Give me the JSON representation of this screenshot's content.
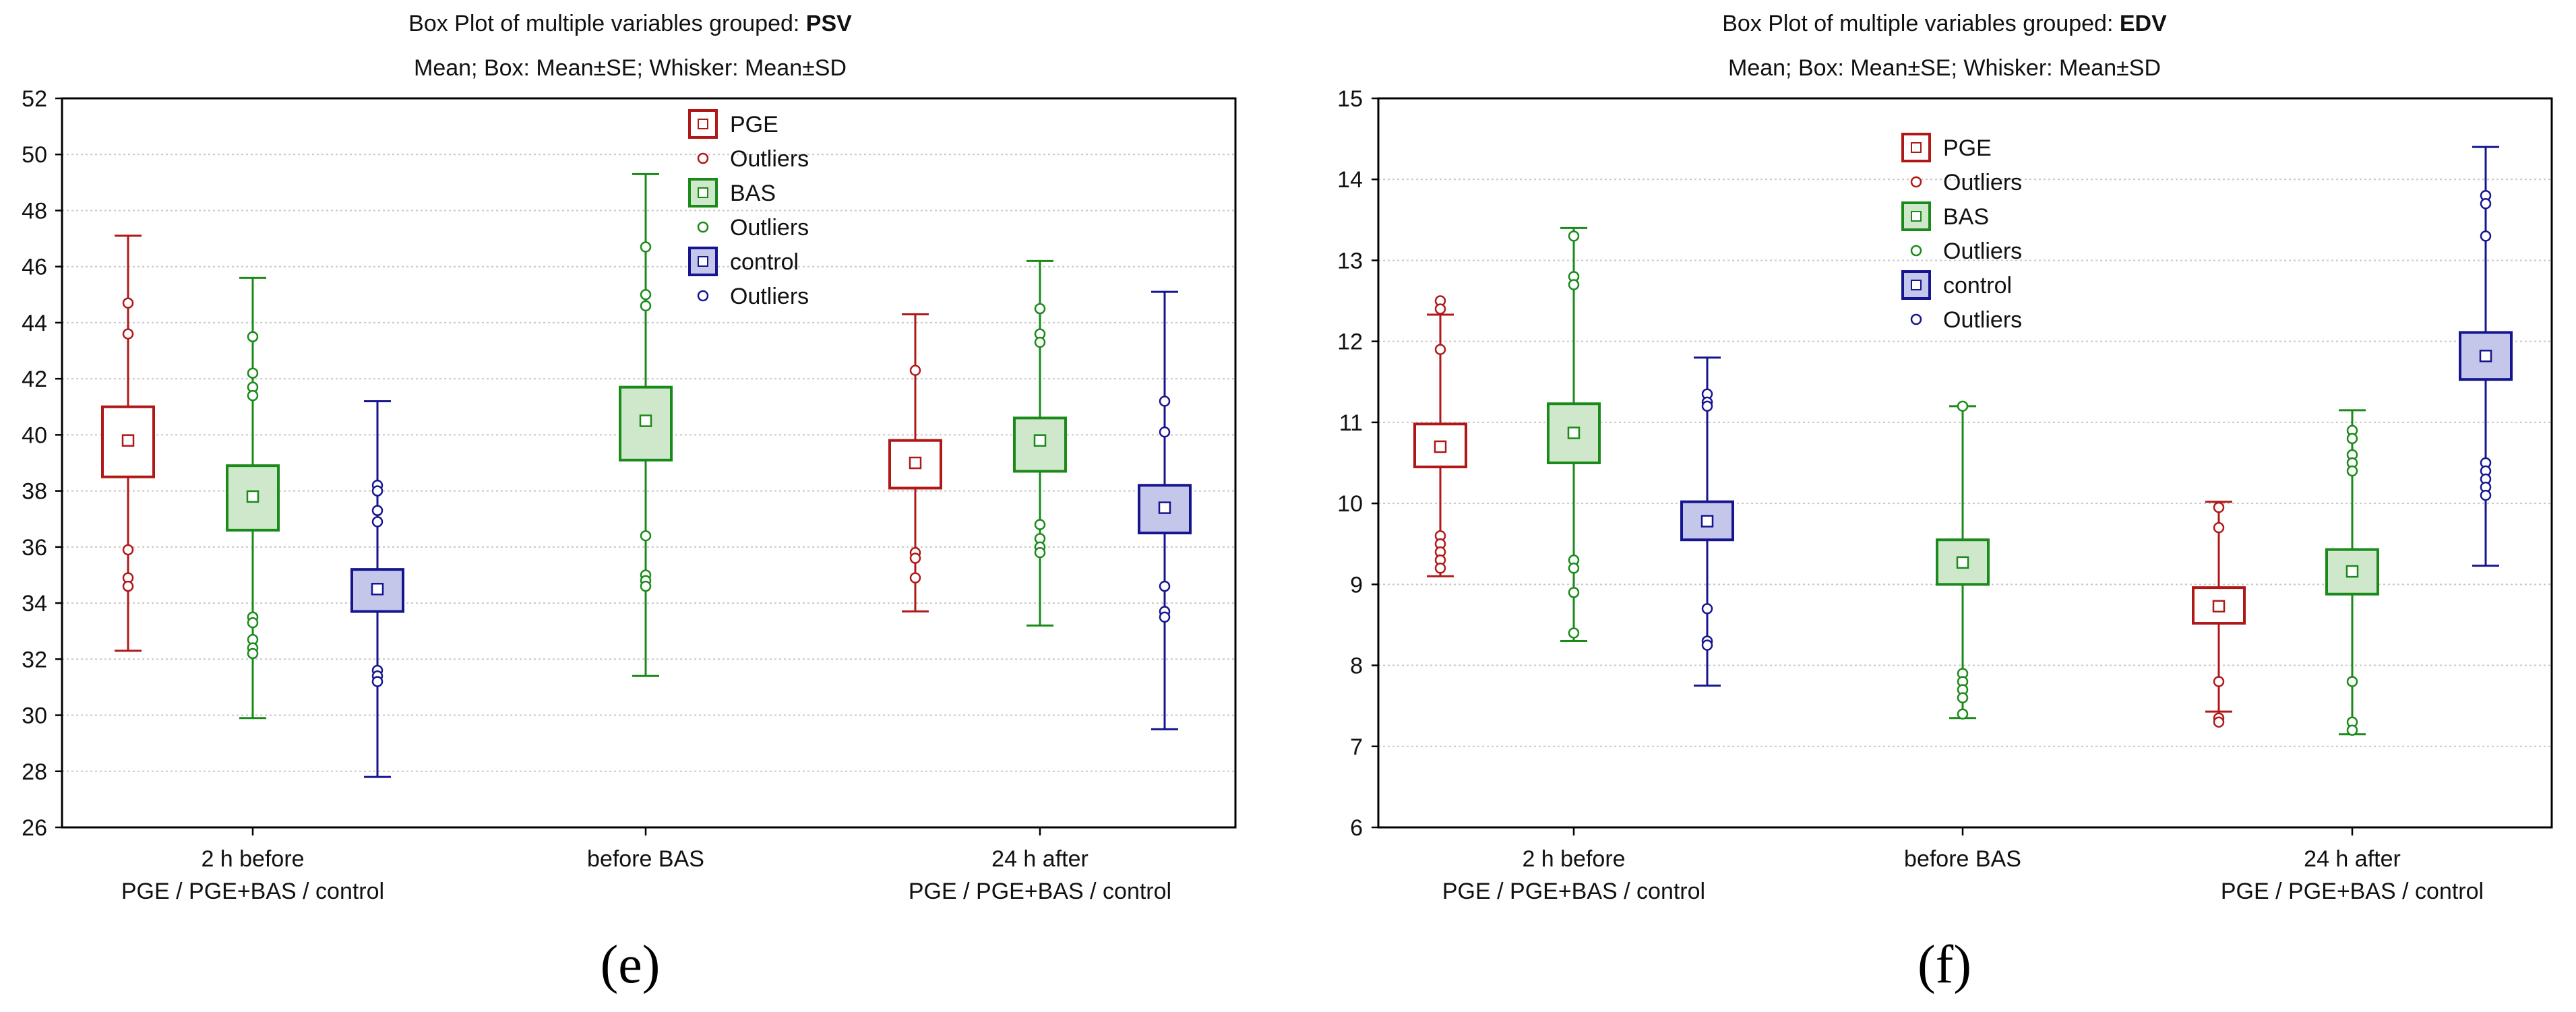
{
  "colors": {
    "PGE": "#b01818",
    "BAS": "#1a8a1a",
    "control": "#151590",
    "BAS_fill": "#cfe8cc",
    "control_fill": "#c4c6ea",
    "grid": "#c8c8c8"
  },
  "legend_labels": [
    "PGE",
    "Outliers",
    "BAS",
    "Outliers",
    "control",
    "Outliers"
  ],
  "chart_data": [
    {
      "type": "box",
      "panel_label": "(e)",
      "title_prefix": "Box Plot of multiple variables grouped: ",
      "title_bold": "PSV",
      "subtitle": "Mean; Box: Mean±SE; Whisker: Mean±SD",
      "ylim": [
        26,
        52
      ],
      "yticks": [
        26,
        28,
        30,
        32,
        34,
        36,
        38,
        40,
        42,
        44,
        46,
        48,
        50,
        52
      ],
      "categories": [
        [
          "2 h before",
          "PGE / PGE+BAS / control"
        ],
        [
          "before BAS"
        ],
        [
          "24 h after",
          "PGE / PGE+BAS / control"
        ]
      ],
      "boxes": [
        {
          "series": "PGE",
          "cat": 0,
          "slot": 0,
          "mean": 39.8,
          "se_low": 38.5,
          "se_high": 41.0,
          "sd_low": 32.3,
          "sd_high": 47.1,
          "outliers": [
            44.7,
            43.6,
            35.9,
            34.9,
            34.6
          ]
        },
        {
          "series": "BAS",
          "cat": 0,
          "slot": 1,
          "mean": 37.8,
          "se_low": 36.6,
          "se_high": 38.9,
          "sd_low": 29.9,
          "sd_high": 45.6,
          "outliers": [
            43.5,
            42.2,
            41.7,
            41.4,
            33.5,
            33.3,
            32.7,
            32.4,
            32.2
          ]
        },
        {
          "series": "control",
          "cat": 0,
          "slot": 2,
          "mean": 34.5,
          "se_low": 33.7,
          "se_high": 35.2,
          "sd_low": 27.8,
          "sd_high": 41.2,
          "outliers": [
            38.2,
            38.0,
            37.3,
            36.9,
            31.6,
            31.4,
            31.2
          ]
        },
        {
          "series": "BAS",
          "cat": 1,
          "slot": 1,
          "mean": 40.5,
          "se_low": 39.1,
          "se_high": 41.7,
          "sd_low": 31.4,
          "sd_high": 49.3,
          "outliers": [
            46.7,
            45.0,
            44.6,
            36.4,
            35.0,
            34.8,
            34.6
          ]
        },
        {
          "series": "PGE",
          "cat": 2,
          "slot": 0,
          "mean": 39.0,
          "se_low": 38.1,
          "se_high": 39.8,
          "sd_low": 33.7,
          "sd_high": 44.3,
          "outliers": [
            42.3,
            35.8,
            35.6,
            34.9
          ]
        },
        {
          "series": "BAS",
          "cat": 2,
          "slot": 1,
          "mean": 39.8,
          "se_low": 38.7,
          "se_high": 40.6,
          "sd_low": 33.2,
          "sd_high": 46.2,
          "outliers": [
            44.5,
            43.6,
            43.3,
            36.8,
            36.3,
            36.0,
            35.8
          ]
        },
        {
          "series": "control",
          "cat": 2,
          "slot": 2,
          "mean": 37.4,
          "se_low": 36.5,
          "se_high": 38.2,
          "sd_low": 29.5,
          "sd_high": 45.1,
          "outliers": [
            41.2,
            40.1,
            34.6,
            33.7,
            33.5
          ]
        }
      ]
    },
    {
      "type": "box",
      "panel_label": "(f)",
      "title_prefix": "Box Plot of multiple variables grouped: ",
      "title_bold": "EDV",
      "subtitle": "Mean; Box: Mean±SE; Whisker: Mean±SD",
      "ylim": [
        6,
        15
      ],
      "yticks": [
        6,
        7,
        8,
        9,
        10,
        11,
        12,
        13,
        14,
        15
      ],
      "categories": [
        [
          "2 h before",
          "PGE / PGE+BAS / control"
        ],
        [
          "before BAS"
        ],
        [
          "24 h after",
          "PGE / PGE+BAS / control"
        ]
      ],
      "boxes": [
        {
          "series": "PGE",
          "cat": 0,
          "slot": 0,
          "mean": 10.7,
          "se_low": 10.45,
          "se_high": 10.98,
          "sd_low": 9.1,
          "sd_high": 12.33,
          "outliers": [
            12.5,
            12.4,
            11.9,
            9.6,
            9.5,
            9.4,
            9.3,
            9.2
          ]
        },
        {
          "series": "BAS",
          "cat": 0,
          "slot": 1,
          "mean": 10.87,
          "se_low": 10.5,
          "se_high": 11.23,
          "sd_low": 8.3,
          "sd_high": 13.4,
          "outliers": [
            13.3,
            12.8,
            12.7,
            9.3,
            9.2,
            8.9,
            8.4
          ]
        },
        {
          "series": "control",
          "cat": 0,
          "slot": 2,
          "mean": 9.78,
          "se_low": 9.55,
          "se_high": 10.02,
          "sd_low": 7.75,
          "sd_high": 11.8,
          "outliers": [
            11.35,
            11.25,
            11.2,
            8.7,
            8.3,
            8.25
          ]
        },
        {
          "series": "BAS",
          "cat": 1,
          "slot": 1,
          "mean": 9.27,
          "se_low": 9.0,
          "se_high": 9.55,
          "sd_low": 7.35,
          "sd_high": 11.2,
          "outliers": [
            11.2,
            7.9,
            7.8,
            7.7,
            7.6,
            7.4
          ]
        },
        {
          "series": "PGE",
          "cat": 2,
          "slot": 0,
          "mean": 8.73,
          "se_low": 8.52,
          "se_high": 8.96,
          "sd_low": 7.43,
          "sd_high": 10.02,
          "outliers": [
            9.95,
            9.7,
            7.8,
            7.35,
            7.3
          ]
        },
        {
          "series": "BAS",
          "cat": 2,
          "slot": 1,
          "mean": 9.16,
          "se_low": 8.88,
          "se_high": 9.43,
          "sd_low": 7.15,
          "sd_high": 11.15,
          "outliers": [
            10.9,
            10.8,
            10.6,
            10.5,
            10.4,
            7.8,
            7.3,
            7.2
          ]
        },
        {
          "series": "control",
          "cat": 2,
          "slot": 2,
          "mean": 11.82,
          "se_low": 11.53,
          "se_high": 12.11,
          "sd_low": 9.23,
          "sd_high": 14.4,
          "outliers": [
            13.8,
            13.7,
            13.3,
            10.5,
            10.4,
            10.3,
            10.2,
            10.1
          ]
        }
      ]
    }
  ]
}
